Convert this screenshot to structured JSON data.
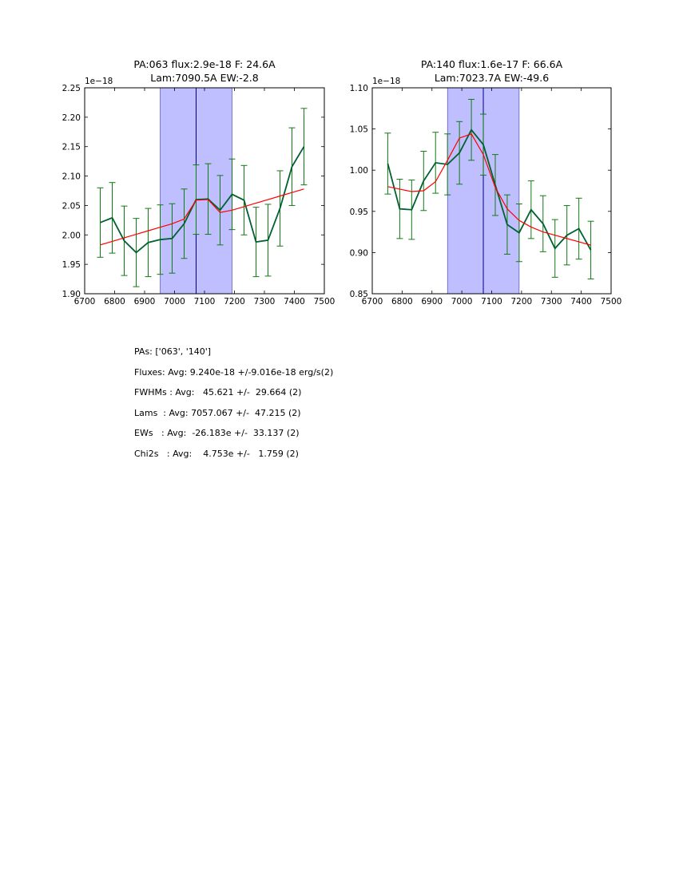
{
  "chart_data": [
    {
      "type": "line",
      "title_line1": "PA:063 flux:2.9e-18 F: 24.6A",
      "title_line2": "Lam:7090.5A EW:-2.8",
      "offset_label": "1e−18",
      "xlim": [
        6700,
        7500
      ],
      "ylim": [
        1.9,
        2.25
      ],
      "xticks": [
        6700,
        6800,
        6900,
        7000,
        7100,
        7200,
        7300,
        7400,
        7500
      ],
      "xtick_labels": [
        "6700",
        "6800",
        "6900",
        "7000",
        "7100",
        "7200",
        "7300",
        "7400",
        "7500"
      ],
      "yticks": [
        1.9,
        1.95,
        2.0,
        2.05,
        2.1,
        2.15,
        2.2,
        2.25
      ],
      "ytick_labels": [
        "1.90",
        "1.95",
        "2.00",
        "2.05",
        "2.10",
        "2.15",
        "2.20",
        "2.25"
      ],
      "shade_range": [
        6952,
        7192
      ],
      "center_line": 7072,
      "series": [
        {
          "name": "data",
          "color": "#006030",
          "x": [
            6752,
            6792,
            6832,
            6872,
            6912,
            6952,
            6992,
            7032,
            7072,
            7112,
            7152,
            7192,
            7232,
            7272,
            7312,
            7352,
            7392,
            7432
          ],
          "y": [
            2.021,
            2.029,
            1.99,
            1.97,
            1.987,
            1.992,
            1.994,
            2.019,
            2.06,
            2.061,
            2.042,
            2.069,
            2.059,
            1.988,
            1.991,
            2.045,
            2.116,
            2.15
          ],
          "yerr": [
            0.059,
            0.06,
            0.059,
            0.058,
            0.058,
            0.059,
            0.059,
            0.059,
            0.059,
            0.06,
            0.059,
            0.06,
            0.059,
            0.059,
            0.061,
            0.064,
            0.066,
            0.065
          ]
        },
        {
          "name": "model",
          "color": "#ff0000",
          "x": [
            6752,
            6792,
            6832,
            6872,
            6912,
            6952,
            6992,
            7032,
            7072,
            7112,
            7152,
            7192,
            7232,
            7272,
            7312,
            7352,
            7392,
            7432
          ],
          "y": [
            1.983,
            1.989,
            1.995,
            2.001,
            2.007,
            2.013,
            2.019,
            2.027,
            2.059,
            2.06,
            2.038,
            2.042,
            2.048,
            2.054,
            2.06,
            2.066,
            2.072,
            2.078
          ]
        }
      ]
    },
    {
      "type": "line",
      "title_line1": "PA:140 flux:1.6e-17 F: 66.6A",
      "title_line2": "Lam:7023.7A EW:-49.6",
      "offset_label": "1e−18",
      "xlim": [
        6700,
        7500
      ],
      "ylim": [
        0.85,
        1.1
      ],
      "xticks": [
        6700,
        6800,
        6900,
        7000,
        7100,
        7200,
        7300,
        7400,
        7500
      ],
      "xtick_labels": [
        "6700",
        "6800",
        "6900",
        "7000",
        "7100",
        "7200",
        "7300",
        "7400",
        "7500"
      ],
      "yticks": [
        0.85,
        0.9,
        0.95,
        1.0,
        1.05,
        1.1
      ],
      "ytick_labels": [
        "0.85",
        "0.90",
        "0.95",
        "1.00",
        "1.05",
        "1.10"
      ],
      "shade_range": [
        6952,
        7192
      ],
      "center_line": 7072,
      "series": [
        {
          "name": "data",
          "color": "#006030",
          "x": [
            6752,
            6792,
            6832,
            6872,
            6912,
            6952,
            6992,
            7032,
            7072,
            7112,
            7152,
            7192,
            7232,
            7272,
            7312,
            7352,
            7392,
            7432
          ],
          "y": [
            1.008,
            0.953,
            0.952,
            0.987,
            1.009,
            1.007,
            1.021,
            1.049,
            1.031,
            0.982,
            0.934,
            0.924,
            0.952,
            0.935,
            0.905,
            0.921,
            0.929,
            0.903
          ],
          "yerr": [
            0.037,
            0.036,
            0.036,
            0.036,
            0.037,
            0.037,
            0.038,
            0.037,
            0.037,
            0.037,
            0.036,
            0.035,
            0.035,
            0.034,
            0.035,
            0.036,
            0.037,
            0.035
          ]
        },
        {
          "name": "model",
          "color": "#ff0000",
          "x": [
            6752,
            6792,
            6832,
            6872,
            6912,
            6952,
            6992,
            7032,
            7072,
            7112,
            7152,
            7192,
            7232,
            7272,
            7312,
            7352,
            7392,
            7432
          ],
          "y": [
            0.98,
            0.977,
            0.974,
            0.975,
            0.986,
            1.012,
            1.039,
            1.044,
            1.019,
            0.979,
            0.953,
            0.939,
            0.931,
            0.925,
            0.921,
            0.917,
            0.913,
            0.909
          ]
        }
      ]
    }
  ],
  "stats": {
    "pas": "PAs: ['063', '140']",
    "fluxes": "Fluxes: Avg: 9.240e-18 +/-9.016e-18 erg/s(2)",
    "fwhms": "FWHMs : Avg:   45.621 +/-  29.664 (2)",
    "lams": "Lams  : Avg: 7057.067 +/-  47.215 (2)",
    "ews": "EWs   : Avg:  -26.183e +/-  33.137 (2)",
    "chi2s": "Chi2s   : Avg:    4.753e +/-   1.759 (2)"
  }
}
